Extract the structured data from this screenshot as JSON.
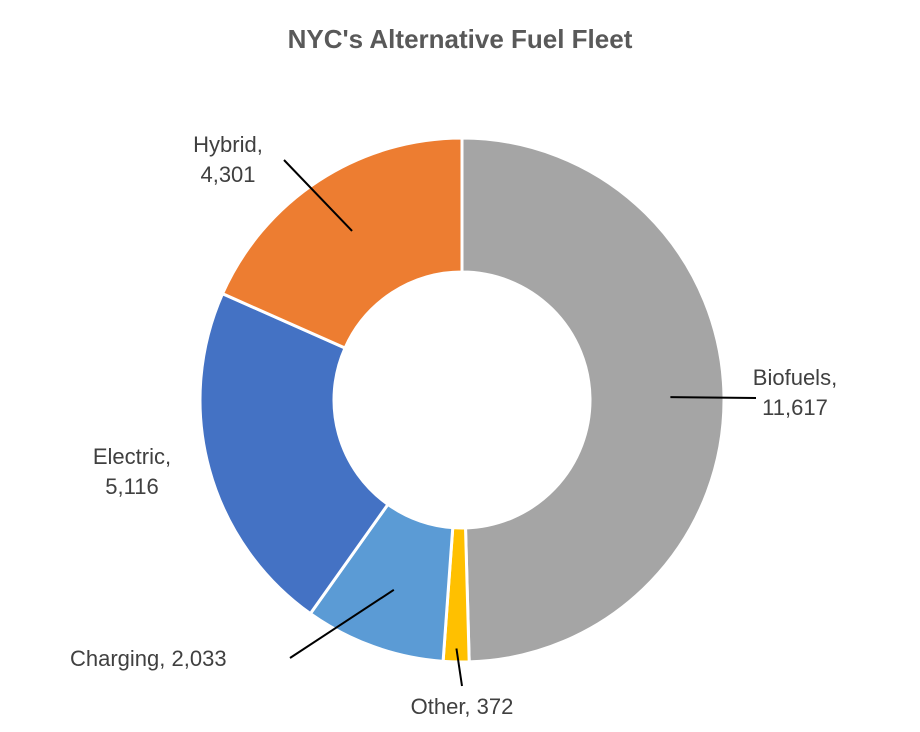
{
  "chart_data": {
    "type": "pie",
    "variant": "donut",
    "title": "NYC's Alternative Fuel Fleet",
    "categories": [
      "Biofuels",
      "Other",
      "Charging",
      "Electric",
      "Hybrid"
    ],
    "values": [
      11617,
      372,
      2033,
      5116,
      4301
    ],
    "value_labels": [
      "11,617",
      "372",
      "2,033",
      "5,116",
      "4,301"
    ],
    "colors": [
      "#A5A5A5",
      "#FFC000",
      "#5B9BD5",
      "#4472C4",
      "#ED7D31"
    ],
    "legend": "none",
    "data_labels": "category and value"
  }
}
